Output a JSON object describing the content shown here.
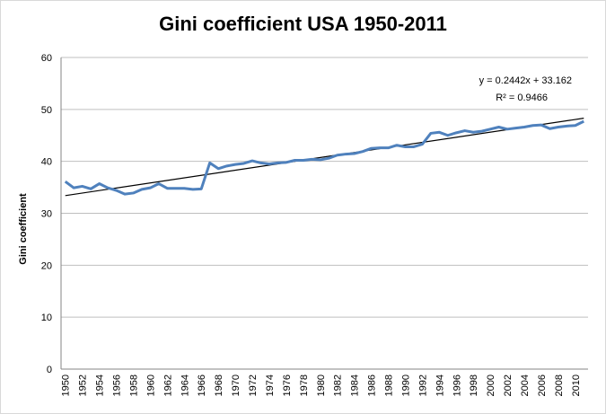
{
  "chart_data": {
    "type": "line",
    "title": "Gini coefficient USA 1950-2011",
    "xlabel": "",
    "ylabel": "Gini coefficient",
    "ylim": [
      0,
      60
    ],
    "yticks": [
      0,
      10,
      20,
      30,
      40,
      50,
      60
    ],
    "xlim": [
      1950,
      2011
    ],
    "xticks": [
      1950,
      1952,
      1954,
      1956,
      1958,
      1960,
      1962,
      1964,
      1966,
      1968,
      1970,
      1972,
      1974,
      1976,
      1978,
      1980,
      1982,
      1984,
      1986,
      1988,
      1990,
      1992,
      1994,
      1996,
      1998,
      2000,
      2002,
      2004,
      2006,
      2008,
      2010
    ],
    "grid": "horizontal",
    "legend": "none",
    "series": [
      {
        "color": "#4f81bd",
        "x": [
          1950,
          1951,
          1952,
          1953,
          1954,
          1955,
          1956,
          1957,
          1958,
          1959,
          1960,
          1961,
          1962,
          1963,
          1964,
          1965,
          1966,
          1967,
          1968,
          1969,
          1970,
          1971,
          1972,
          1973,
          1974,
          1975,
          1976,
          1977,
          1978,
          1979,
          1980,
          1981,
          1982,
          1983,
          1984,
          1985,
          1986,
          1987,
          1988,
          1989,
          1990,
          1991,
          1992,
          1993,
          1994,
          1995,
          1996,
          1997,
          1998,
          1999,
          2000,
          2001,
          2002,
          2003,
          2004,
          2005,
          2006,
          2007,
          2008,
          2009,
          2010,
          2011
        ],
        "values": [
          36.1,
          34.9,
          35.2,
          34.7,
          35.7,
          34.9,
          34.4,
          33.7,
          33.9,
          34.6,
          34.9,
          35.7,
          34.8,
          34.8,
          34.8,
          34.6,
          34.7,
          39.7,
          38.6,
          39.1,
          39.4,
          39.6,
          40.1,
          39.7,
          39.5,
          39.7,
          39.8,
          40.2,
          40.2,
          40.4,
          40.3,
          40.6,
          41.2,
          41.4,
          41.5,
          41.9,
          42.5,
          42.6,
          42.6,
          43.1,
          42.8,
          42.8,
          43.3,
          45.4,
          45.6,
          45.0,
          45.5,
          45.9,
          45.6,
          45.8,
          46.2,
          46.6,
          46.2,
          46.4,
          46.6,
          46.9,
          47.0,
          46.3,
          46.6,
          46.8,
          46.9,
          47.7
        ]
      }
    ],
    "trendline": {
      "type": "linear",
      "slope": 0.2442,
      "intercept": 33.162,
      "color": "#000000",
      "equation": "y = 0.2442x + 33.162",
      "r2_label": "R² = 0.9466"
    }
  }
}
